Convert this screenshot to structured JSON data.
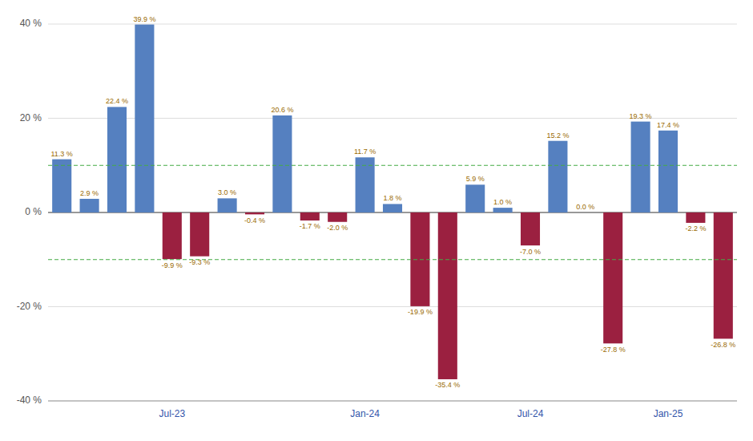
{
  "chart_data": {
    "type": "bar",
    "categories": [
      null,
      null,
      null,
      null,
      "Jul-23",
      null,
      null,
      null,
      null,
      null,
      null,
      "Jan-24",
      null,
      null,
      null,
      null,
      null,
      "Jul-24",
      null,
      null,
      null,
      null,
      "Jan-25",
      null,
      null
    ],
    "values": [
      11.3,
      2.9,
      22.4,
      39.9,
      -9.9,
      -9.3,
      3.0,
      -0.4,
      20.6,
      -1.7,
      -2.0,
      11.7,
      1.8,
      -19.9,
      -35.4,
      5.9,
      1.0,
      -7.0,
      15.2,
      0.0,
      -27.8,
      19.3,
      17.4,
      -2.2,
      -26.8
    ],
    "value_labels": [
      "11.3 %",
      "2.9 %",
      "22.4 %",
      "39.9 %",
      "-9.9 %",
      "-9.3 %",
      "3.0 %",
      "-0.4 %",
      "20.6 %",
      "-1.7 %",
      "-2.0 %",
      "11.7 %",
      "1.8 %",
      "-19.9 %",
      "-35.4 %",
      "5.9 %",
      "1.0 %",
      "-7.0 %",
      "15.2 %",
      "0.0 %",
      "-27.8 %",
      "19.3 %",
      "17.4 %",
      "-2.2 %",
      "-26.8 %"
    ],
    "colors": [
      "#5580C0",
      "#5580C0",
      "#5580C0",
      "#5580C0",
      "#9B2040",
      "#9B2040",
      "#5580C0",
      "#9B2040",
      "#5580C0",
      "#9B2040",
      "#9B2040",
      "#5580C0",
      "#5580C0",
      "#9B2040",
      "#9B2040",
      "#5580C0",
      "#5580C0",
      "#9B2040",
      "#5580C0",
      "#5580C0",
      "#9B2040",
      "#5580C0",
      "#5580C0",
      "#9B2040",
      "#9B2040"
    ],
    "data_labels": true,
    "ylim": [
      -40,
      40
    ],
    "yticks": [
      {
        "value": -40,
        "label": "-40 %"
      },
      {
        "value": -20,
        "label": "-20 %"
      },
      {
        "value": 0,
        "label": "0 %"
      },
      {
        "value": 20,
        "label": "20 %"
      },
      {
        "value": 40,
        "label": "40 %"
      }
    ],
    "grid": true,
    "reference_lines": [
      {
        "value": 10,
        "color": "#44AA44"
      },
      {
        "value": -10,
        "color": "#44AA44"
      }
    ]
  }
}
